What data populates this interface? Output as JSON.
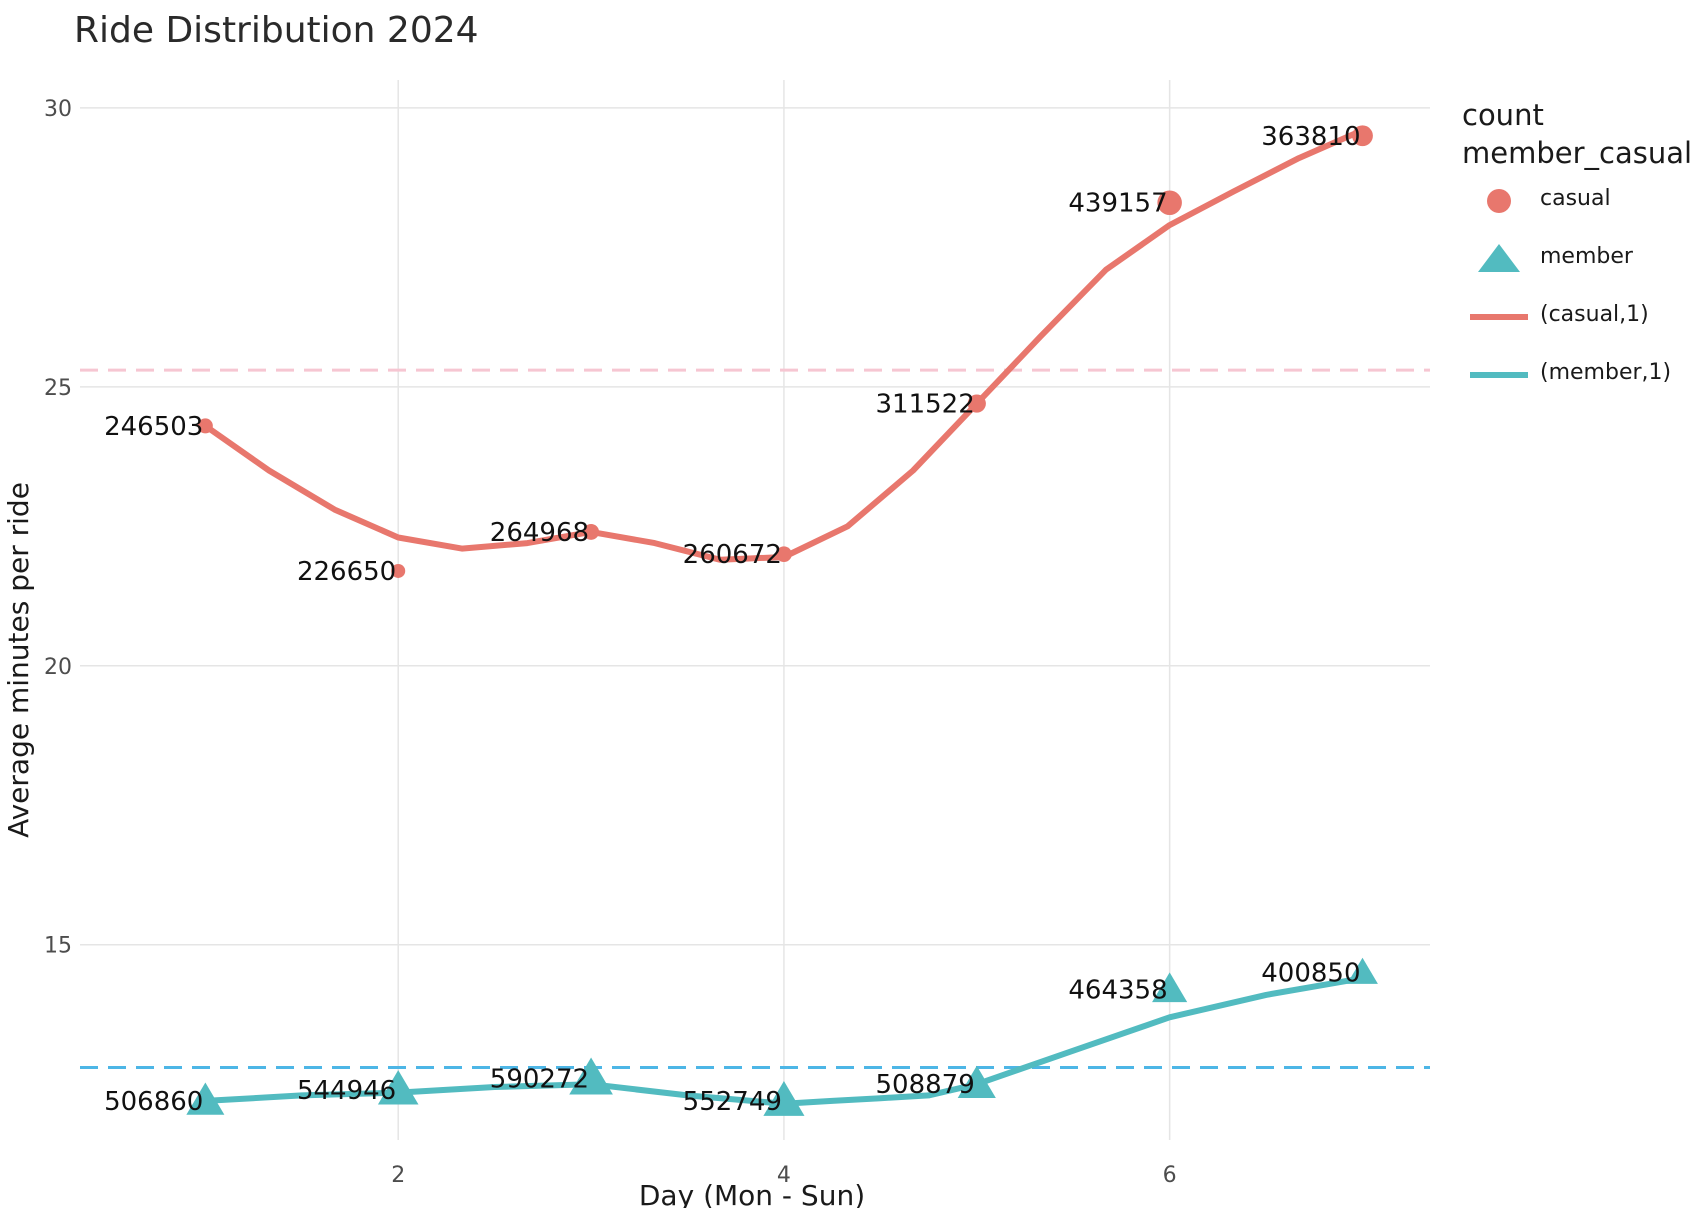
{
  "chart_data": {
    "type": "line",
    "title": "Ride Distribution 2024",
    "xlabel": "Day (Mon - Sun)",
    "ylabel": "Average minutes per ride",
    "xlim": [
      0.35,
      7.35
    ],
    "ylim": [
      11.5,
      30.5
    ],
    "x_ticks": [
      2,
      4,
      6
    ],
    "y_ticks": [
      15,
      20,
      25,
      30
    ],
    "grid": true,
    "legend_placement": "right",
    "legend": {
      "titles": [
        "count",
        "member_casual"
      ],
      "entries": [
        "casual",
        "member",
        "(casual,1)",
        "(member,1)"
      ]
    },
    "series": [
      {
        "name": "casual",
        "marker": "circle",
        "color": "#E8776D",
        "x": [
          1,
          2,
          3,
          4,
          5,
          6,
          7
        ],
        "y": [
          24.3,
          21.7,
          22.4,
          22.0,
          24.7,
          28.3,
          29.5
        ],
        "count_labels": [
          "246503",
          "226650",
          "264968",
          "260672",
          "311522",
          "439157",
          "363810"
        ],
        "counts": [
          246503,
          226650,
          264968,
          260672,
          311522,
          439157,
          363810
        ]
      },
      {
        "name": "member",
        "marker": "triangle",
        "color": "#52BBC0",
        "x": [
          1,
          2,
          3,
          4,
          5,
          6,
          7
        ],
        "y": [
          12.2,
          12.4,
          12.6,
          12.2,
          12.5,
          14.2,
          14.5
        ],
        "count_labels": [
          "506860",
          "544946",
          "590272",
          "552749",
          "508879",
          "464358",
          "400850"
        ],
        "counts": [
          506860,
          544946,
          590272,
          552749,
          508879,
          464358,
          400850
        ]
      }
    ],
    "smooth_lines": [
      {
        "name": "(casual,1)",
        "color": "#E8776D",
        "x": [
          1,
          1.33,
          1.67,
          2,
          2.33,
          2.67,
          3,
          3.33,
          3.67,
          4,
          4.33,
          4.67,
          5,
          5.33,
          5.67,
          6,
          6.33,
          6.67,
          7
        ],
        "y": [
          24.3,
          23.5,
          22.8,
          22.3,
          22.1,
          22.2,
          22.4,
          22.2,
          21.9,
          21.95,
          22.5,
          23.5,
          24.7,
          25.9,
          27.1,
          27.9,
          28.5,
          29.1,
          29.6
        ]
      },
      {
        "name": "(member,1)",
        "color": "#52BBC0",
        "x": [
          1,
          1.5,
          2,
          2.5,
          3,
          3.5,
          4,
          4.25,
          4.5,
          4.75,
          5,
          5.5,
          6,
          6.5,
          7
        ],
        "y": [
          12.2,
          12.3,
          12.35,
          12.45,
          12.5,
          12.3,
          12.15,
          12.2,
          12.25,
          12.3,
          12.5,
          13.1,
          13.7,
          14.1,
          14.4
        ]
      }
    ],
    "reference_lines": [
      {
        "y": 25.3,
        "color": "#F6C6D2",
        "style": "dashed"
      },
      {
        "y": 12.8,
        "color": "#4DB6E6",
        "style": "dashed"
      }
    ]
  }
}
